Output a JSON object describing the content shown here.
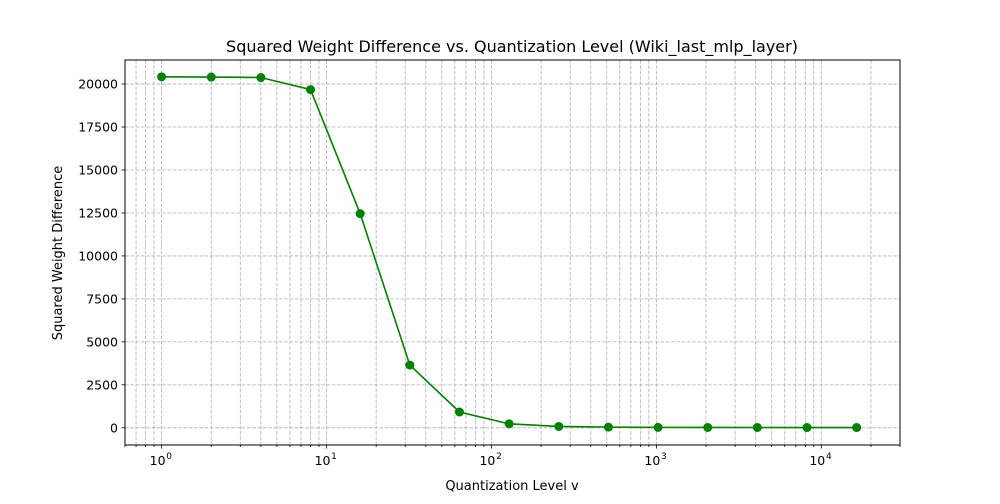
{
  "chart_data": {
    "type": "line",
    "title": "Squared Weight Difference vs. Quantization Level (Wiki_last_mlp_layer)",
    "xlabel": "Quantization Level v",
    "ylabel": "Squared Weight Difference",
    "x_scale": "log",
    "xlim": [
      0.6,
      30000
    ],
    "ylim": [
      -1000,
      21400
    ],
    "grid": true,
    "grid_style": "dashed",
    "x_ticks": [
      {
        "value": 1,
        "label": "10",
        "exp": "0"
      },
      {
        "value": 10,
        "label": "10",
        "exp": "1"
      },
      {
        "value": 100,
        "label": "10",
        "exp": "2"
      },
      {
        "value": 1000,
        "label": "10",
        "exp": "3"
      },
      {
        "value": 10000,
        "label": "10",
        "exp": "4"
      }
    ],
    "y_ticks": [
      0,
      2500,
      5000,
      7500,
      10000,
      12500,
      15000,
      17500,
      20000
    ],
    "series": [
      {
        "color": "#008000",
        "marker": "circle",
        "x": [
          1,
          2,
          4,
          8,
          16,
          32,
          64,
          128,
          256,
          512,
          1024,
          2048,
          4096,
          8192,
          16384
        ],
        "y": [
          20420,
          20410,
          20380,
          19680,
          12460,
          3650,
          920,
          230,
          80,
          40,
          25,
          20,
          18,
          17,
          15
        ]
      }
    ]
  }
}
